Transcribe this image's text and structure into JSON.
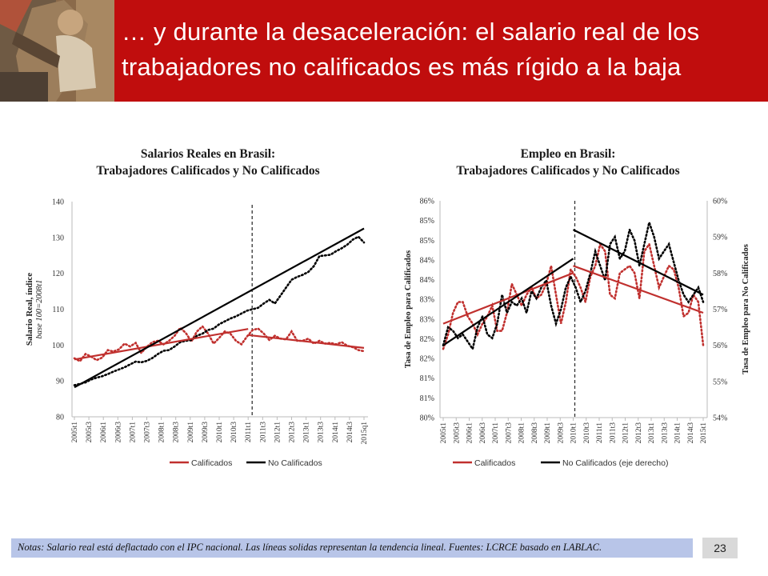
{
  "slide": {
    "title": "… y durante la desaceleración: el salario real de los trabajadores no calificados es más rígido a la baja",
    "note": "Notas: Salario real está deflactado con el IPC nacional. Las líneas solidas representan la tendencia lineal. Fuentes: LCRCE basado en LABLAC.",
    "page_number": "23"
  },
  "colors": {
    "header": "#c00d0d",
    "calificados": "#c0302e",
    "no_calificados": "#000000",
    "note_bar": "#b8c5e8"
  },
  "chart_data": [
    {
      "type": "line",
      "title_line1": "Salarios Reales en Brasil:",
      "title_line2": "Trabajadores Calificados y No Calificados",
      "ylabel": "Salario Real, índice",
      "ylabel_sub": "base 100=2008t1",
      "ylim": [
        80,
        140
      ],
      "yticks": [
        80,
        90,
        100,
        110,
        120,
        130,
        140
      ],
      "x_tick_labels": [
        "2005t1",
        "2005t3",
        "2006t1",
        "2006t3",
        "2007t1",
        "2007t3",
        "2008t1",
        "2008t3",
        "2009t1",
        "2009t3",
        "2010t1",
        "2010t3",
        "2011t1",
        "2011t3",
        "2012t1",
        "2012t3",
        "2013t1",
        "2013t3",
        "2014t1",
        "2014t3",
        "2015q1"
      ],
      "break_index": 12,
      "grid": false,
      "legend_position": "bottom",
      "series": [
        {
          "name": "Calificados",
          "color": "#c0302e",
          "style": "dotted",
          "values": [
            96.3,
            95.5,
            97.5,
            96.8,
            95.8,
            96.5,
            98.6,
            98.2,
            98.8,
            100.4,
            99.6,
            100.6,
            97.8,
            99.5,
            100.8,
            101.2,
            100.2,
            101.2,
            102.6,
            104.8,
            103.4,
            101.0,
            103.8,
            105.2,
            103.2,
            100.4,
            102.0,
            103.8,
            103.2,
            101.2,
            100.2,
            102.4,
            104.2,
            104.6,
            103.2,
            101.4,
            102.6,
            101.8,
            101.6,
            103.8,
            101.2,
            101.2,
            101.8,
            100.4,
            101.2,
            100.4,
            100.6,
            100.2,
            100.8,
            99.8,
            99.4,
            98.6,
            98.3
          ]
        },
        {
          "name": "No Calificados",
          "color": "#000000",
          "style": "dotted",
          "values": [
            88.8,
            89.2,
            89.6,
            90.4,
            90.9,
            91.3,
            91.9,
            92.6,
            93.2,
            93.8,
            94.6,
            95.4,
            95.2,
            95.6,
            96.4,
            97.5,
            98.4,
            98.6,
            99.6,
            100.8,
            101.2,
            101.4,
            102.6,
            103.2,
            104.2,
            104.6,
            105.8,
            106.6,
            107.4,
            108.0,
            108.8,
            109.6,
            110.0,
            110.4,
            111.6,
            112.6,
            111.6,
            113.8,
            116.0,
            118.2,
            119.0,
            119.6,
            120.4,
            122.0,
            124.8,
            125.0,
            125.2,
            126.2,
            127.0,
            128.0,
            129.4,
            130.2,
            128.6
          ]
        },
        {
          "name": "Calificados trend",
          "color": "#c0302e",
          "style": "solid",
          "segments": [
            {
              "x": [
                0,
                12
              ],
              "y": [
                96.0,
                104.5
              ]
            },
            {
              "x": [
                12,
                20
              ],
              "y": [
                102.8,
                99.2
              ]
            }
          ]
        },
        {
          "name": "No Calificados trend",
          "color": "#000000",
          "style": "solid",
          "segments": [
            {
              "x": [
                0,
                20
              ],
              "y": [
                88.2,
                132.5
              ]
            }
          ]
        }
      ],
      "legend": [
        {
          "label": "Calificados",
          "color": "#c0302e"
        },
        {
          "label": "No Calificados",
          "color": "#000000"
        }
      ]
    },
    {
      "type": "line",
      "title_line1": "Empleo en Brasil:",
      "title_line2": "Trabajadores Calificados y No Calificados",
      "ylabel": "Tasa de Empleo para Calificados",
      "ylabel_right": "Tasa de Empleo para No Calificados",
      "y_left_range": [
        80,
        86
      ],
      "y_left_ticks": [
        "80%",
        "81%",
        "81%",
        "82%",
        "82%",
        "83%",
        "83%",
        "84%",
        "84%",
        "85%",
        "85%",
        "86%"
      ],
      "y_right_range": [
        54,
        60
      ],
      "y_right_ticks": [
        "54%",
        "55%",
        "56%",
        "57%",
        "58%",
        "59%",
        "60%"
      ],
      "x_tick_labels": [
        "2005t1",
        "2005t3",
        "2006t1",
        "2006t3",
        "2007t1",
        "2007t3",
        "2008t1",
        "2008t3",
        "2009t1",
        "2009t3",
        "2010t1",
        "2010t3",
        "2011t1",
        "2011t3",
        "2012t1",
        "2012t3",
        "2013t1",
        "2013t3",
        "2014t1",
        "2014t3",
        "2015t1"
      ],
      "break_index": 10,
      "grid": false,
      "legend_position": "bottom",
      "series": [
        {
          "name": "Calificados",
          "axis": "left",
          "color": "#c0302e",
          "style": "dotted",
          "values": [
            81.9,
            82.3,
            82.9,
            83.2,
            83.2,
            82.8,
            82.6,
            82.3,
            82.6,
            82.8,
            83.1,
            82.4,
            82.4,
            82.9,
            83.7,
            83.4,
            83.1,
            83.4,
            83.6,
            83.3,
            83.4,
            83.7,
            84.2,
            83.4,
            82.6,
            83.2,
            84.1,
            83.9,
            83.6,
            83.2,
            83.9,
            84.2,
            84.8,
            84.6,
            83.4,
            83.3,
            84.0,
            84.1,
            84.2,
            84.0,
            83.3,
            84.6,
            84.8,
            84.2,
            83.6,
            83.9,
            84.2,
            84.1,
            83.6,
            82.8,
            82.9,
            83.4,
            83.2,
            82.0
          ]
        },
        {
          "name": "No Calificados (eje derecho)",
          "axis": "right",
          "color": "#000000",
          "style": "dotted",
          "values": [
            56.0,
            56.5,
            56.4,
            56.2,
            56.3,
            56.1,
            55.9,
            56.5,
            56.8,
            56.3,
            56.2,
            56.6,
            57.4,
            56.9,
            57.2,
            57.1,
            57.3,
            56.9,
            57.5,
            57.3,
            57.6,
            57.8,
            57.1,
            56.6,
            57.0,
            57.6,
            57.9,
            57.6,
            57.2,
            57.5,
            58.0,
            58.6,
            58.2,
            57.8,
            58.8,
            59.0,
            58.4,
            58.6,
            59.2,
            58.9,
            58.2,
            58.8,
            59.4,
            59.0,
            58.4,
            58.6,
            58.8,
            58.3,
            57.8,
            57.4,
            57.2,
            57.4,
            57.6,
            57.2
          ]
        },
        {
          "name": "Calificados trend",
          "axis": "left",
          "color": "#c0302e",
          "style": "solid",
          "segments": [
            {
              "x": [
                0,
                10
              ],
              "y": [
                82.6,
                84.0
              ]
            },
            {
              "x": [
                10,
                20
              ],
              "y": [
                84.2,
                82.9
              ]
            }
          ]
        },
        {
          "name": "No Calificados trend",
          "axis": "right",
          "color": "#000000",
          "style": "solid",
          "segments": [
            {
              "x": [
                0,
                10
              ],
              "y": [
                56.0,
                58.4
              ]
            },
            {
              "x": [
                10,
                20
              ],
              "y": [
                59.2,
                57.4
              ]
            }
          ]
        }
      ],
      "legend": [
        {
          "label": "Calificados",
          "color": "#c0302e"
        },
        {
          "label": "No Calificados (eje derecho)",
          "color": "#000000"
        }
      ]
    }
  ]
}
